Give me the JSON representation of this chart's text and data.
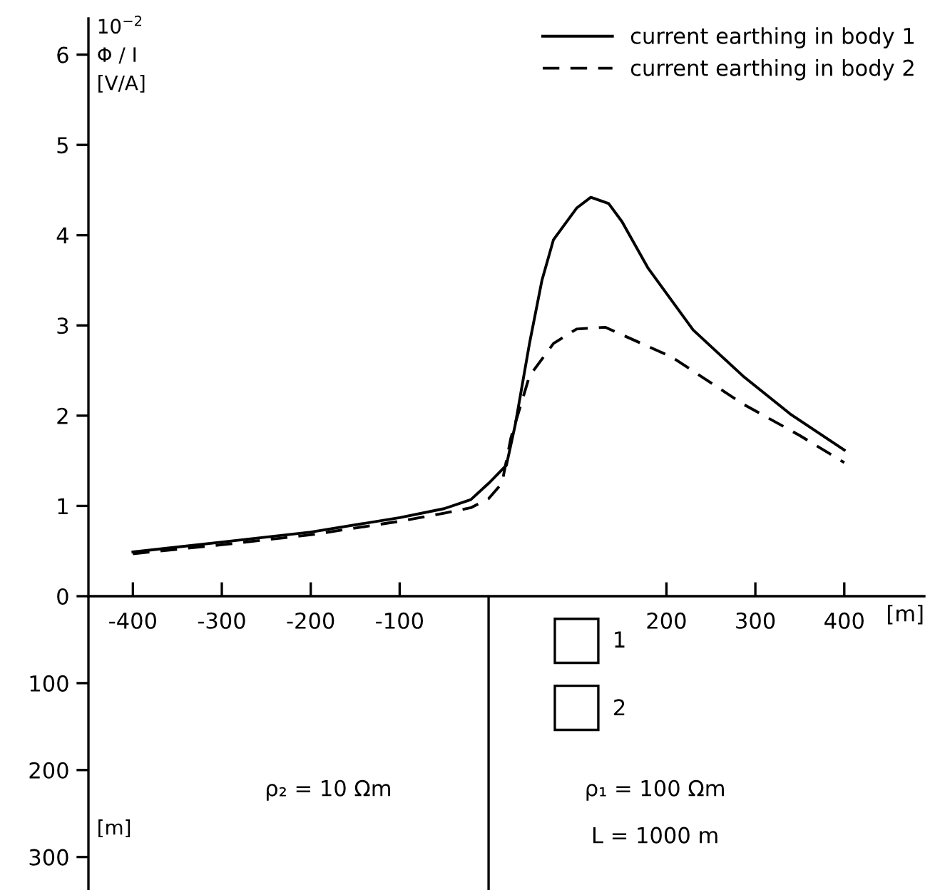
{
  "chart_data": [
    {
      "type": "line",
      "ylabel": "10$^{−2}$\nΦ / I\n[V/A]",
      "xlabel": "[m]",
      "xlim": [
        -450,
        490
      ],
      "ylim": [
        0,
        6.4
      ],
      "xticks": [
        -400,
        -300,
        -200,
        -100,
        200,
        300,
        400
      ],
      "yticks": [
        0,
        1,
        2,
        3,
        4,
        5,
        6
      ],
      "legend": "top right",
      "grid": false,
      "marker": "none",
      "series": [
        {
          "name": "current earthing in body 1",
          "color": "#000000",
          "line_style": "solid",
          "x": [
            -400,
            -300,
            -200,
            -100,
            -50,
            -20,
            0,
            10,
            20,
            30,
            46,
            60,
            73,
            99,
            115,
            135,
            150,
            179,
            230,
            286,
            339,
            400
          ],
          "values": [
            0.49,
            0.6,
            0.71,
            0.87,
            0.97,
            1.07,
            1.25,
            1.35,
            1.45,
            1.9,
            2.8,
            3.5,
            3.95,
            4.3,
            4.42,
            4.35,
            4.15,
            3.64,
            2.95,
            2.44,
            2.02,
            1.62
          ]
        },
        {
          "name": "current earthing in body 2",
          "color": "#000000",
          "line_style": "dashed",
          "x": [
            -400,
            -300,
            -200,
            -100,
            -50,
            -20,
            0,
            15,
            25,
            46,
            73,
            99,
            131,
            206,
            286,
            350,
            400
          ],
          "values": [
            0.47,
            0.57,
            0.68,
            0.83,
            0.92,
            0.98,
            1.08,
            1.25,
            1.75,
            2.44,
            2.8,
            2.96,
            2.98,
            2.65,
            2.13,
            1.78,
            1.48
          ]
        }
      ]
    },
    {
      "type": "line",
      "ylabel": "[m]",
      "xlim": [
        -450,
        490
      ],
      "ylim": [
        338,
        0
      ],
      "yticks": [
        100,
        200,
        300
      ],
      "tick_labels": "y",
      "ref_lines": [
        {
          "axis": "x",
          "value": 0,
          "color": "#000000"
        }
      ],
      "annotations": [
        "1",
        "2",
        "ρ₂ = 10 Ωm",
        "ρ₁ = 100 Ωm",
        "L = 1000 m"
      ]
    }
  ]
}
